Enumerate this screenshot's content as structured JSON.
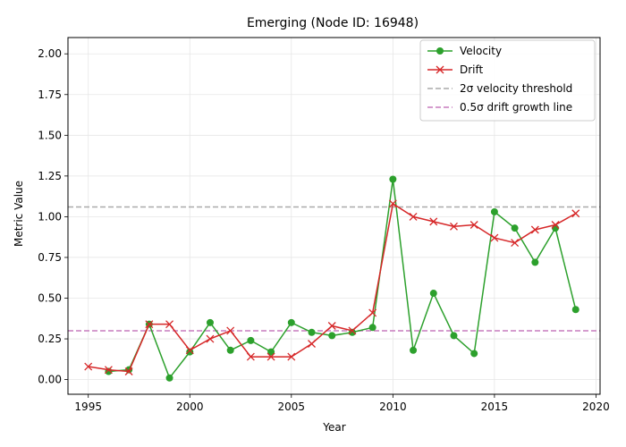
{
  "chart_data": {
    "type": "line",
    "title": "Emerging (Node ID: 16948)",
    "xlabel": "Year",
    "ylabel": "Metric Value",
    "xlim": [
      1994,
      2020.2
    ],
    "ylim": [
      -0.09,
      2.1
    ],
    "x_ticks": [
      1995,
      2000,
      2005,
      2010,
      2015,
      2020
    ],
    "y_ticks": [
      0.0,
      0.25,
      0.5,
      0.75,
      1.0,
      1.25,
      1.5,
      1.75,
      2.0
    ],
    "x_tick_labels": [
      "1995",
      "2000",
      "2005",
      "2010",
      "2015",
      "2020"
    ],
    "y_tick_labels": [
      "0.00",
      "0.25",
      "0.50",
      "0.75",
      "1.00",
      "1.25",
      "1.50",
      "1.75",
      "2.00"
    ],
    "grid": true,
    "legend_position": "top-right",
    "series": [
      {
        "name": "Velocity",
        "color": "#2ca02c",
        "marker": "circle",
        "x": [
          1996,
          1997,
          1998,
          1999,
          2000,
          2001,
          2002,
          2003,
          2004,
          2005,
          2006,
          2007,
          2008,
          2009,
          2010,
          2011,
          2012,
          2013,
          2014,
          2015,
          2016,
          2017,
          2018,
          2019
        ],
        "y": [
          0.05,
          0.06,
          0.34,
          0.01,
          0.17,
          0.35,
          0.18,
          0.24,
          0.17,
          0.35,
          0.29,
          0.27,
          0.29,
          0.32,
          1.23,
          0.18,
          0.53,
          0.27,
          0.16,
          1.03,
          0.93,
          0.72,
          0.93,
          0.43
        ]
      },
      {
        "name": "Drift",
        "color": "#d62728",
        "marker": "x",
        "x": [
          1995,
          1996,
          1997,
          1998,
          1999,
          2000,
          2001,
          2002,
          2003,
          2004,
          2005,
          2006,
          2007,
          2008,
          2009,
          2010,
          2011,
          2012,
          2013,
          2014,
          2015,
          2016,
          2017,
          2018,
          2019
        ],
        "y": [
          0.08,
          0.06,
          0.05,
          0.34,
          0.34,
          0.18,
          0.25,
          0.3,
          0.14,
          0.14,
          0.14,
          0.22,
          0.33,
          0.3,
          0.41,
          1.08,
          1.0,
          0.97,
          0.94,
          0.95,
          0.87,
          0.84,
          0.92,
          0.95,
          1.02
        ]
      }
    ],
    "reference_lines": [
      {
        "name": "2σ velocity threshold",
        "y": 1.06,
        "color": "#aaaaaa",
        "dash": true
      },
      {
        "name": "0.5σ drift growth line",
        "y": 0.3,
        "color": "#c77cbd",
        "dash": true
      }
    ]
  }
}
